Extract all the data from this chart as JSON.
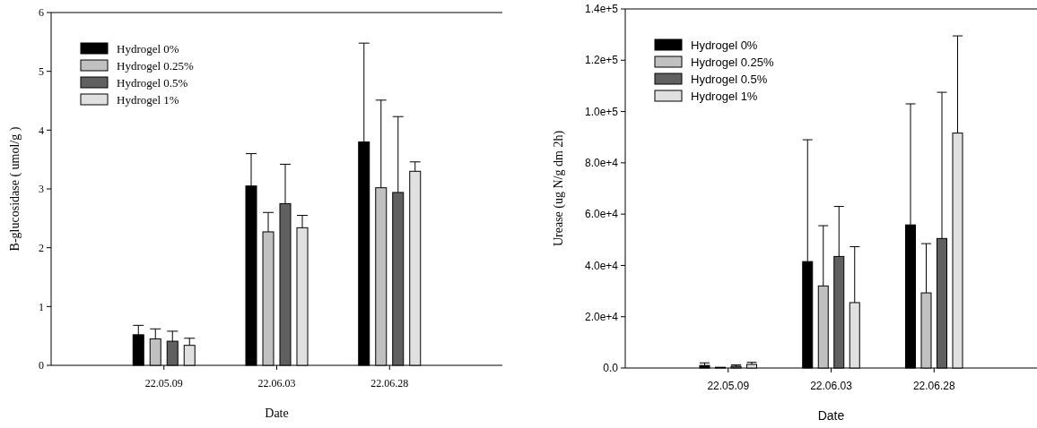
{
  "chart_data": [
    {
      "type": "bar",
      "categories": [
        "22.05.09",
        "22.06.03",
        "22.06.28"
      ],
      "xlabel": "Date",
      "ylabel": "B-glucosidase ( umol/g )",
      "ylim": [
        0,
        6
      ],
      "yticks": [
        0,
        1,
        2,
        3,
        4,
        5,
        6
      ],
      "legend": "top left",
      "series": [
        {
          "name": "Hydrogel 0%",
          "color": "#000000",
          "values": [
            0.52,
            3.05,
            3.8
          ],
          "errors": [
            [
              0.52,
              0.68
            ],
            [
              3.05,
              3.6
            ],
            [
              3.8,
              5.48
            ]
          ]
        },
        {
          "name": "Hydrogel 0.25%",
          "color": "#c0c0c0",
          "values": [
            0.45,
            2.27,
            3.02
          ],
          "errors": [
            [
              0.45,
              0.62
            ],
            [
              2.27,
              2.6
            ],
            [
              3.02,
              4.51
            ]
          ]
        },
        {
          "name": "Hydrogel 0.5%",
          "color": "#606060",
          "values": [
            0.41,
            2.75,
            2.94
          ],
          "errors": [
            [
              0.41,
              0.58
            ],
            [
              2.75,
              3.42
            ],
            [
              2.94,
              4.23
            ]
          ]
        },
        {
          "name": "Hydrogel 1%",
          "color": "#e0e0e0",
          "values": [
            0.34,
            2.34,
            3.3
          ],
          "errors": [
            [
              0.34,
              0.46
            ],
            [
              2.34,
              2.55
            ],
            [
              3.3,
              3.46
            ]
          ]
        }
      ]
    },
    {
      "type": "bar",
      "categories": [
        "22.05.09",
        "22.06.03",
        "22.06.28"
      ],
      "xlabel": "Date",
      "ylabel": "Urease (ug N/g dm 2h)",
      "ylim": [
        0,
        140000
      ],
      "yticks": [
        {
          "value": 0,
          "label": "0.0"
        },
        {
          "value": 20000,
          "label": "2.0e+4"
        },
        {
          "value": 40000,
          "label": "4.0e+4"
        },
        {
          "value": 60000,
          "label": "6.0e+4"
        },
        {
          "value": 80000,
          "label": "8.0e+4"
        },
        {
          "value": 100000,
          "label": "1.0e+5"
        },
        {
          "value": 120000,
          "label": "1.2e+5"
        },
        {
          "value": 140000,
          "label": "1.4e+5"
        }
      ],
      "legend": "top left",
      "series": [
        {
          "name": "Hydrogel 0%",
          "color": "#000000",
          "values": [
            1000,
            41500,
            55800
          ],
          "errors": [
            [
              1000,
              2000
            ],
            [
              41500,
              89000
            ],
            [
              55800,
              103000
            ]
          ]
        },
        {
          "name": "Hydrogel 0.25%",
          "color": "#c0c0c0",
          "values": [
            300,
            32000,
            29300
          ],
          "errors": [
            null,
            [
              32000,
              55500
            ],
            [
              29300,
              48500
            ]
          ]
        },
        {
          "name": "Hydrogel 0.5%",
          "color": "#606060",
          "values": [
            700,
            43500,
            50500
          ],
          "errors": [
            [
              700,
              1200
            ],
            [
              43500,
              63000
            ],
            [
              50500,
              107500
            ]
          ]
        },
        {
          "name": "Hydrogel 1%",
          "color": "#e0e0e0",
          "values": [
            1400,
            25500,
            91600
          ],
          "errors": [
            [
              1400,
              2200
            ],
            [
              25500,
              47300
            ],
            [
              91600,
              129500
            ]
          ]
        }
      ]
    }
  ]
}
